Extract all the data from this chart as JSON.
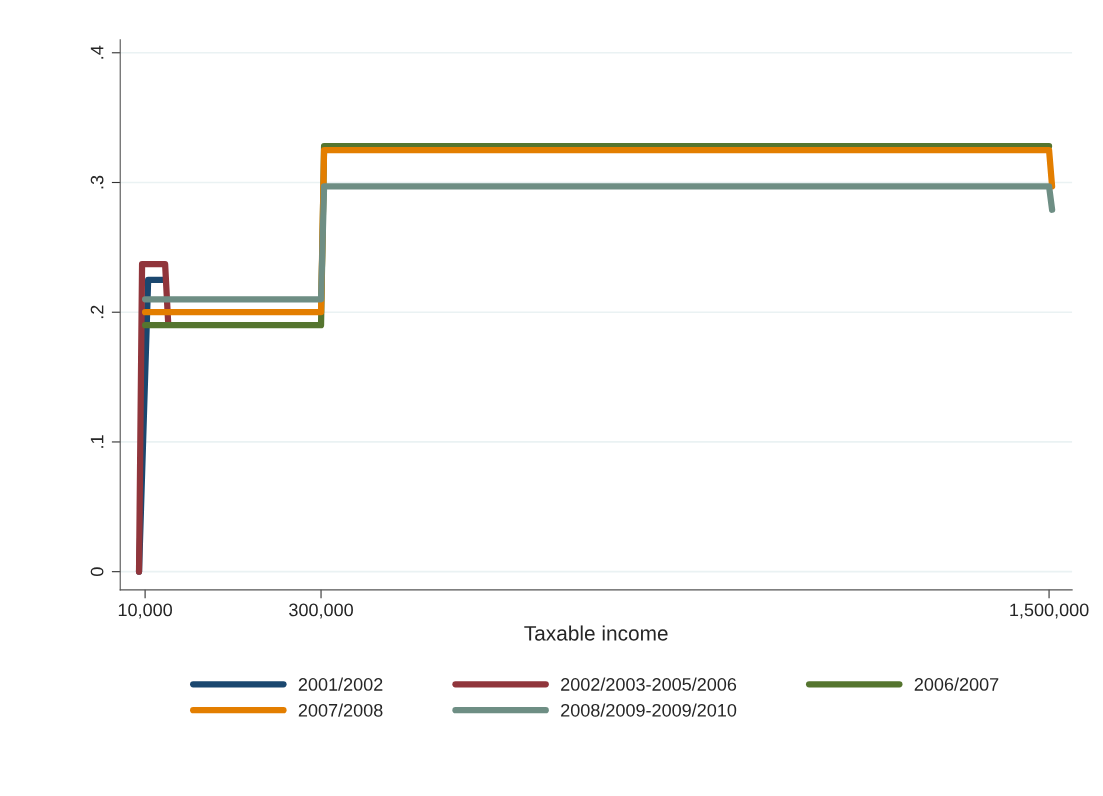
{
  "chart_data": {
    "type": "line",
    "xlabel": "Taxable income",
    "xlim": [
      -31000,
      1538000
    ],
    "xticks": [
      {
        "value": 10000,
        "label": "10,000"
      },
      {
        "value": 300000,
        "label": "300,000"
      },
      {
        "value": 1500000,
        "label": "1,500,000"
      }
    ],
    "ylim": [
      -0.014,
      0.41
    ],
    "yticks": [
      0,
      {
        "value": 0.1,
        "label": ".1"
      },
      {
        "value": 0.2,
        "label": ".2"
      },
      {
        "value": 0.3,
        "label": ".3"
      },
      {
        "value": 0.4,
        "label": ".4"
      }
    ],
    "grid": "y",
    "legend": "bottom",
    "line_style": "solid",
    "series": [
      {
        "name": "2001/2002",
        "color": "#1a476f",
        "x": [
          0,
          15000,
          40000
        ],
        "values": [
          0,
          0.225,
          0.225
        ]
      },
      {
        "name": "2002/2003-2005/2006",
        "color": "#90353b",
        "x": [
          0,
          5000,
          43000,
          48000
        ],
        "values": [
          0,
          0.237,
          0.237,
          0.192
        ]
      },
      {
        "name": "2006/2007",
        "color": "#55752f",
        "x": [
          10000,
          300000,
          305000,
          1500000
        ],
        "values": [
          0.19,
          0.19,
          0.328,
          0.328
        ]
      },
      {
        "name": "2007/2008",
        "color": "#e37e00",
        "x": [
          10000,
          300000,
          305000,
          1500000,
          1505000
        ],
        "values": [
          0.2,
          0.2,
          0.325,
          0.325,
          0.297
        ]
      },
      {
        "name": "2008/2009-2009/2010",
        "color": "#6e8e84",
        "x": [
          10000,
          300000,
          305000,
          1500000,
          1505000
        ],
        "values": [
          0.21,
          0.21,
          0.297,
          0.297,
          0.279
        ]
      }
    ]
  }
}
